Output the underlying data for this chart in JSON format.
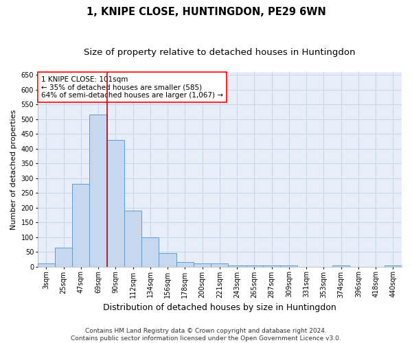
{
  "title_line1": "1, KNIPE CLOSE, HUNTINGDON, PE29 6WN",
  "title_line2": "Size of property relative to detached houses in Huntingdon",
  "xlabel": "Distribution of detached houses by size in Huntingdon",
  "ylabel": "Number of detached properties",
  "categories": [
    "3sqm",
    "25sqm",
    "47sqm",
    "69sqm",
    "90sqm",
    "112sqm",
    "134sqm",
    "156sqm",
    "178sqm",
    "200sqm",
    "221sqm",
    "243sqm",
    "265sqm",
    "287sqm",
    "309sqm",
    "331sqm",
    "353sqm",
    "374sqm",
    "396sqm",
    "418sqm",
    "440sqm"
  ],
  "values": [
    10,
    65,
    280,
    515,
    430,
    190,
    100,
    45,
    15,
    10,
    10,
    5,
    5,
    5,
    5,
    0,
    0,
    5,
    0,
    0,
    3
  ],
  "bar_color": "#c5d8f0",
  "bar_edge_color": "#5b9bd5",
  "bar_linewidth": 0.7,
  "vline_color": "#cc0000",
  "vline_linewidth": 1.2,
  "vline_x_index": 3.5,
  "annotation_text": "1 KNIPE CLOSE: 101sqm\n← 35% of detached houses are smaller (585)\n64% of semi-detached houses are larger (1,067) →",
  "annotation_box_color": "white",
  "annotation_box_edge_color": "red",
  "ylim": [
    0,
    660
  ],
  "yticks": [
    0,
    50,
    100,
    150,
    200,
    250,
    300,
    350,
    400,
    450,
    500,
    550,
    600,
    650
  ],
  "grid_color": "#c8d4e8",
  "background_color": "#e8eef8",
  "footer_line1": "Contains HM Land Registry data © Crown copyright and database right 2024.",
  "footer_line2": "Contains public sector information licensed under the Open Government Licence v3.0.",
  "title_fontsize": 10.5,
  "subtitle_fontsize": 9.5,
  "xlabel_fontsize": 9,
  "ylabel_fontsize": 8,
  "tick_fontsize": 7,
  "annotation_fontsize": 7.5,
  "footer_fontsize": 6.5
}
